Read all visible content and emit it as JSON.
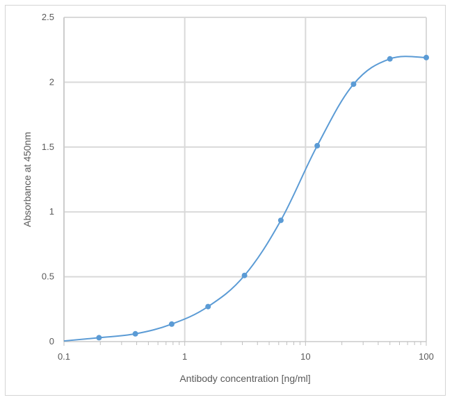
{
  "chart_data": {
    "type": "scatter",
    "title": "",
    "xlabel": "Antibody concentration  [ng/ml]",
    "ylabel": "Absorbance at 450nm",
    "x_scale": "log",
    "xlim": [
      0.1,
      100
    ],
    "ylim": [
      0,
      2.5
    ],
    "x_ticks": [
      0.1,
      1,
      10,
      100
    ],
    "x_tick_labels": [
      "0.1",
      "1",
      "10",
      "100"
    ],
    "y_ticks": [
      0,
      0.5,
      1,
      1.5,
      2,
      2.5
    ],
    "y_tick_labels": [
      "0",
      "0.5",
      "1",
      "1.5",
      "2",
      "2.5"
    ],
    "grid": true,
    "legend": "none",
    "smoothed_line": true,
    "series": [
      {
        "color": "#5b9bd5",
        "x": [
          0.195,
          0.39,
          0.78,
          1.56,
          3.125,
          6.25,
          12.5,
          25,
          50,
          100
        ],
        "y": [
          0.03,
          0.06,
          0.135,
          0.27,
          0.51,
          0.935,
          1.51,
          1.985,
          2.18,
          2.19
        ]
      }
    ]
  }
}
